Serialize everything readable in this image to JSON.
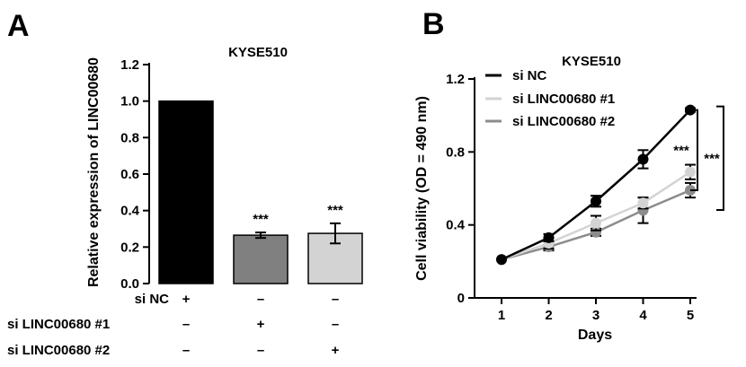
{
  "panels": {
    "A": {
      "letter": "A",
      "chart_data": {
        "type": "bar",
        "title": "KYSE510",
        "ylabel": "Relative expression of LINC00680",
        "ylim": [
          0,
          1.2
        ],
        "yticks": [
          0.0,
          0.2,
          0.4,
          0.6,
          0.8,
          1.0,
          1.2
        ],
        "ytick_labels": [
          "0.0",
          "0.2",
          "0.4",
          "0.6",
          "0.8",
          "1.0",
          "1.2"
        ],
        "categories": [
          "si NC",
          "si LINC00680 #1",
          "si LINC00680 #2"
        ],
        "values": [
          1.0,
          0.265,
          0.275
        ],
        "errors": [
          0,
          0.015,
          0.055
        ],
        "colors": [
          "#000000",
          "#808080",
          "#d3d3d3"
        ],
        "significance": [
          "",
          "***",
          "***"
        ],
        "condition_rows": [
          {
            "label": "si NC",
            "marks": [
              "+",
              "–",
              "–"
            ]
          },
          {
            "label": "si LINC00680 #1",
            "marks": [
              "–",
              "+",
              "–"
            ]
          },
          {
            "label": "si LINC00680 #2",
            "marks": [
              "–",
              "–",
              "+"
            ]
          }
        ]
      }
    },
    "B": {
      "letter": "B",
      "chart_data": {
        "type": "line",
        "title": "KYSE510",
        "xlabel": "Days",
        "ylabel": "Cell viability (OD = 490 nm)",
        "x": [
          1,
          2,
          3,
          4,
          5
        ],
        "xlim": [
          0.5,
          5.2
        ],
        "ylim": [
          0,
          1.2
        ],
        "yticks": [
          0,
          0.4,
          0.8,
          1.2
        ],
        "ytick_labels": [
          "0",
          "0.4",
          "0.8",
          "1.2"
        ],
        "series": [
          {
            "name": "si NC",
            "color": "#000000",
            "values": [
              0.21,
              0.33,
              0.53,
              0.76,
              1.03
            ],
            "errors": [
              0.0,
              0.02,
              0.03,
              0.05,
              0.01
            ]
          },
          {
            "name": "si LINC00680 #1",
            "color": "#d3d3d3",
            "values": [
              0.21,
              0.3,
              0.41,
              0.52,
              0.69
            ],
            "errors": [
              0.0,
              0.03,
              0.04,
              0.03,
              0.04
            ]
          },
          {
            "name": "si LINC00680 #2",
            "color": "#8c8c8c",
            "values": [
              0.21,
              0.28,
              0.36,
              0.48,
              0.59
            ],
            "errors": [
              0.0,
              0.02,
              0.02,
              0.07,
              0.04
            ]
          }
        ],
        "significance": [
          "***",
          "***"
        ]
      }
    }
  }
}
